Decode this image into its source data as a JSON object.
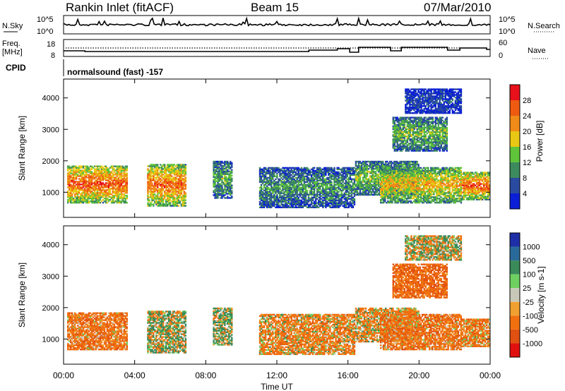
{
  "header": {
    "station": "Rankin Inlet (fitACF)",
    "beam": "Beam 15",
    "date": "07/Mar/2010"
  },
  "noise_panel": {
    "left_label": "N.Sky",
    "right_label": "N.Search",
    "y_ticks": [
      "10^5",
      "10^0"
    ]
  },
  "freq_panel": {
    "left_label_top": "Freq.",
    "left_label_bottom": "[MHz]",
    "left_ticks": [
      "18",
      "8"
    ],
    "right_label": "Nave",
    "right_ticks": [
      "60",
      "0"
    ]
  },
  "cpid_panel": {
    "label": "CPID",
    "text": "normalsound (fast) -157"
  },
  "x_axis": {
    "ticks": [
      "00:00",
      "04:00",
      "08:00",
      "12:00",
      "16:00",
      "20:00",
      "00:00"
    ],
    "label": "Time UT"
  },
  "colors": {
    "power": [
      "#0a1fd6",
      "#2a4aa0",
      "#3d8a5f",
      "#5fc43a",
      "#e8c814",
      "#f08a18",
      "#ee5a12",
      "#e8101a"
    ],
    "velocity": [
      "#1f2fa8",
      "#2a6a9a",
      "#3a8a5a",
      "#6ed060",
      "#c8c8b8",
      "#f0a030",
      "#f07010",
      "#e05010",
      "#e01010"
    ]
  },
  "chart_data": [
    {
      "type": "heatmap",
      "name": "power",
      "ylabel": "Slant Range [km]",
      "y_ticks": [
        "1000",
        "2000",
        "3000",
        "4000"
      ],
      "ylim": [
        200,
        4600
      ],
      "xlim_hours": [
        0,
        24
      ],
      "colorbar_label": "Power [dB]",
      "colorbar_ticks": [
        "4",
        "8",
        "12",
        "16",
        "20",
        "24",
        "28"
      ],
      "clim": [
        0,
        32
      ],
      "regions": [
        {
          "t0": 0.2,
          "t1": 3.6,
          "r0": 650,
          "r1": 1850,
          "level": 27
        },
        {
          "t0": 4.7,
          "t1": 6.9,
          "r0": 550,
          "r1": 1900,
          "level": 26
        },
        {
          "t0": 8.4,
          "t1": 9.5,
          "r0": 800,
          "r1": 2000,
          "level": 13
        },
        {
          "t0": 11.0,
          "t1": 16.4,
          "r0": 500,
          "r1": 1800,
          "level": 11
        },
        {
          "t0": 16.4,
          "t1": 20.0,
          "r0": 900,
          "r1": 2000,
          "level": 15
        },
        {
          "t0": 17.8,
          "t1": 22.4,
          "r0": 650,
          "r1": 1800,
          "level": 21
        },
        {
          "t0": 22.4,
          "t1": 24.0,
          "r0": 750,
          "r1": 1650,
          "level": 27
        },
        {
          "t0": 18.5,
          "t1": 21.6,
          "r0": 2300,
          "r1": 3400,
          "level": 14
        },
        {
          "t0": 19.2,
          "t1": 22.4,
          "r0": 3500,
          "r1": 4300,
          "level": 5
        }
      ]
    },
    {
      "type": "heatmap",
      "name": "velocity",
      "ylabel": "Slant Range [km]",
      "y_ticks": [
        "1000",
        "2000",
        "3000",
        "4000"
      ],
      "ylim": [
        200,
        4600
      ],
      "xlim_hours": [
        0,
        24
      ],
      "colorbar_label": "Velocity [m s-1]",
      "colorbar_ticks": [
        "1000",
        "500",
        "100",
        "25",
        "-25",
        "-100",
        "-500",
        "-1000"
      ],
      "clim": [
        -1000,
        1000
      ],
      "regions": [
        {
          "t0": 0.2,
          "t1": 3.6,
          "r0": 650,
          "r1": 1850,
          "level": -300
        },
        {
          "t0": 4.7,
          "t1": 6.9,
          "r0": 550,
          "r1": 1900,
          "level": 50
        },
        {
          "t0": 8.4,
          "t1": 9.5,
          "r0": 800,
          "r1": 2000,
          "level": 100
        },
        {
          "t0": 11.0,
          "t1": 16.4,
          "r0": 500,
          "r1": 1800,
          "level": -200
        },
        {
          "t0": 16.4,
          "t1": 20.0,
          "r0": 900,
          "r1": 2000,
          "level": -150
        },
        {
          "t0": 17.8,
          "t1": 22.4,
          "r0": 650,
          "r1": 1800,
          "level": -300
        },
        {
          "t0": 22.4,
          "t1": 24.0,
          "r0": 750,
          "r1": 1650,
          "level": -250
        },
        {
          "t0": 18.5,
          "t1": 21.6,
          "r0": 2300,
          "r1": 3400,
          "level": -400
        },
        {
          "t0": 19.2,
          "t1": 22.4,
          "r0": 3500,
          "r1": 4300,
          "level": 0
        }
      ]
    }
  ]
}
